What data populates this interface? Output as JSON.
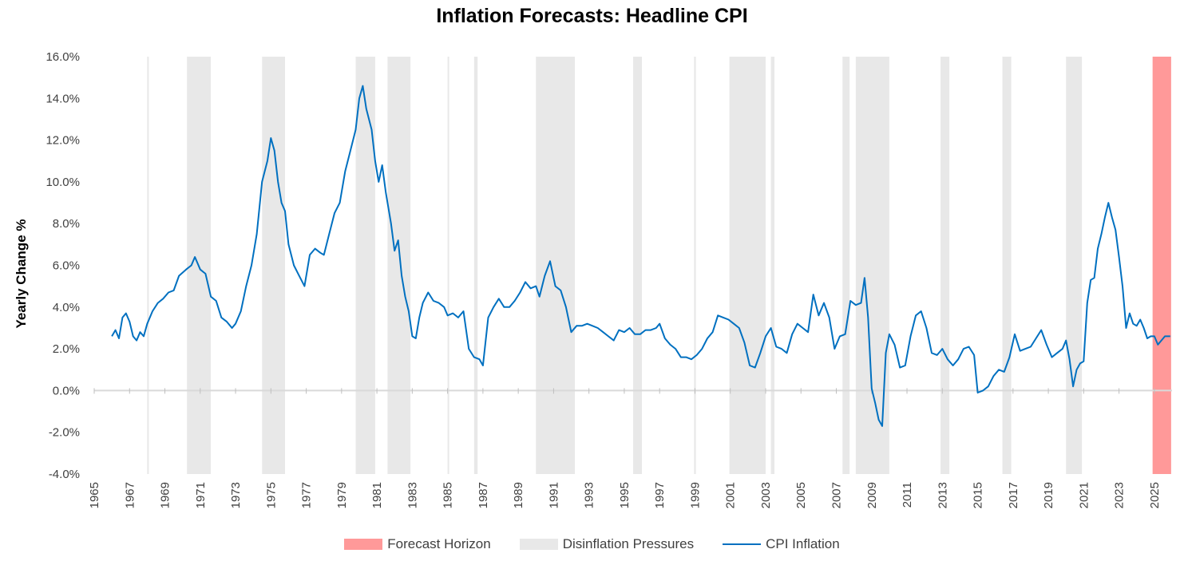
{
  "chart_data": {
    "type": "line",
    "title": "Inflation Forecasts: Headline CPI",
    "xlabel": "",
    "ylabel": "Yearly Change %",
    "xlim": [
      1965,
      2026
    ],
    "ylim": [
      -4,
      16
    ],
    "y_ticks": [
      "-4.0%",
      "-2.0%",
      "0.0%",
      "2.0%",
      "4.0%",
      "6.0%",
      "8.0%",
      "10.0%",
      "12.0%",
      "14.0%",
      "16.0%"
    ],
    "x_ticks": [
      "1965",
      "1967",
      "1969",
      "1971",
      "1973",
      "1975",
      "1977",
      "1979",
      "1981",
      "1983",
      "1985",
      "1987",
      "1989",
      "1991",
      "1993",
      "1995",
      "1997",
      "1999",
      "2001",
      "2003",
      "2005",
      "2007",
      "2009",
      "2011",
      "2013",
      "2015",
      "2017",
      "2019",
      "2021",
      "2023",
      "2025"
    ],
    "grid": false,
    "legend_position": "bottom",
    "colors": {
      "forecast": "#ff9999",
      "disinflation": "#e8e8e8",
      "line": "#0070c0"
    },
    "legend": [
      {
        "label": "Forecast Horizon",
        "color": "#ff9999",
        "kind": "rect"
      },
      {
        "label": "Disinflation Pressures",
        "color": "#e8e8e8",
        "kind": "rect"
      },
      {
        "label": "CPI Inflation",
        "color": "#0070c0",
        "kind": "line"
      }
    ],
    "forecast_horizon": [
      2024.9,
      2025.95
    ],
    "disinflation_periods": [
      [
        1968.0,
        1968.08
      ],
      [
        1970.25,
        1971.6
      ],
      [
        1974.5,
        1975.8
      ],
      [
        1979.8,
        1980.9
      ],
      [
        1981.6,
        1982.9
      ],
      [
        1985.0,
        1985.08
      ],
      [
        1986.5,
        1986.7
      ],
      [
        1990.0,
        1992.2
      ],
      [
        1995.5,
        1996.0
      ],
      [
        1998.95,
        1999.05
      ],
      [
        2000.95,
        2003.0
      ],
      [
        2003.3,
        2003.5
      ],
      [
        2007.35,
        2007.75
      ],
      [
        2008.1,
        2010.0
      ],
      [
        2012.9,
        2013.4
      ],
      [
        2016.4,
        2016.9
      ],
      [
        2020.0,
        2020.9
      ]
    ],
    "series": [
      {
        "name": "CPI Inflation",
        "points": [
          [
            1966.0,
            2.6
          ],
          [
            1966.2,
            2.9
          ],
          [
            1966.4,
            2.5
          ],
          [
            1966.6,
            3.5
          ],
          [
            1966.8,
            3.7
          ],
          [
            1967.0,
            3.3
          ],
          [
            1967.2,
            2.6
          ],
          [
            1967.4,
            2.4
          ],
          [
            1967.6,
            2.8
          ],
          [
            1967.8,
            2.6
          ],
          [
            1968.0,
            3.2
          ],
          [
            1968.3,
            3.8
          ],
          [
            1968.6,
            4.2
          ],
          [
            1968.9,
            4.4
          ],
          [
            1969.2,
            4.7
          ],
          [
            1969.5,
            4.8
          ],
          [
            1969.8,
            5.5
          ],
          [
            1970.2,
            5.8
          ],
          [
            1970.5,
            6.0
          ],
          [
            1970.7,
            6.4
          ],
          [
            1971.0,
            5.8
          ],
          [
            1971.3,
            5.6
          ],
          [
            1971.6,
            4.5
          ],
          [
            1971.9,
            4.3
          ],
          [
            1972.2,
            3.5
          ],
          [
            1972.5,
            3.3
          ],
          [
            1972.8,
            3.0
          ],
          [
            1973.0,
            3.2
          ],
          [
            1973.3,
            3.8
          ],
          [
            1973.6,
            5.0
          ],
          [
            1973.9,
            6.0
          ],
          [
            1974.2,
            7.5
          ],
          [
            1974.5,
            10.0
          ],
          [
            1974.8,
            11.0
          ],
          [
            1975.0,
            12.1
          ],
          [
            1975.2,
            11.5
          ],
          [
            1975.4,
            10.0
          ],
          [
            1975.6,
            9.0
          ],
          [
            1975.8,
            8.6
          ],
          [
            1976.0,
            7.0
          ],
          [
            1976.3,
            6.0
          ],
          [
            1976.6,
            5.5
          ],
          [
            1976.9,
            5.0
          ],
          [
            1977.2,
            6.5
          ],
          [
            1977.5,
            6.8
          ],
          [
            1977.8,
            6.6
          ],
          [
            1978.0,
            6.5
          ],
          [
            1978.3,
            7.5
          ],
          [
            1978.6,
            8.5
          ],
          [
            1978.9,
            9.0
          ],
          [
            1979.2,
            10.5
          ],
          [
            1979.5,
            11.5
          ],
          [
            1979.8,
            12.5
          ],
          [
            1980.0,
            14.0
          ],
          [
            1980.2,
            14.6
          ],
          [
            1980.4,
            13.5
          ],
          [
            1980.7,
            12.5
          ],
          [
            1980.9,
            11.0
          ],
          [
            1981.1,
            10.0
          ],
          [
            1981.3,
            10.8
          ],
          [
            1981.5,
            9.5
          ],
          [
            1981.8,
            8.0
          ],
          [
            1982.0,
            6.7
          ],
          [
            1982.2,
            7.2
          ],
          [
            1982.4,
            5.5
          ],
          [
            1982.6,
            4.5
          ],
          [
            1982.8,
            3.8
          ],
          [
            1983.0,
            2.6
          ],
          [
            1983.2,
            2.5
          ],
          [
            1983.4,
            3.5
          ],
          [
            1983.6,
            4.2
          ],
          [
            1983.9,
            4.7
          ],
          [
            1984.2,
            4.3
          ],
          [
            1984.5,
            4.2
          ],
          [
            1984.8,
            4.0
          ],
          [
            1985.0,
            3.6
          ],
          [
            1985.3,
            3.7
          ],
          [
            1985.6,
            3.5
          ],
          [
            1985.9,
            3.8
          ],
          [
            1986.2,
            2.0
          ],
          [
            1986.5,
            1.6
          ],
          [
            1986.8,
            1.5
          ],
          [
            1987.0,
            1.2
          ],
          [
            1987.3,
            3.5
          ],
          [
            1987.6,
            4.0
          ],
          [
            1987.9,
            4.4
          ],
          [
            1988.2,
            4.0
          ],
          [
            1988.5,
            4.0
          ],
          [
            1988.8,
            4.3
          ],
          [
            1989.1,
            4.7
          ],
          [
            1989.4,
            5.2
          ],
          [
            1989.7,
            4.9
          ],
          [
            1990.0,
            5.0
          ],
          [
            1990.2,
            4.5
          ],
          [
            1990.5,
            5.5
          ],
          [
            1990.8,
            6.2
          ],
          [
            1991.1,
            5.0
          ],
          [
            1991.4,
            4.8
          ],
          [
            1991.7,
            4.0
          ],
          [
            1992.0,
            2.8
          ],
          [
            1992.3,
            3.1
          ],
          [
            1992.6,
            3.1
          ],
          [
            1992.9,
            3.2
          ],
          [
            1993.2,
            3.1
          ],
          [
            1993.5,
            3.0
          ],
          [
            1993.8,
            2.8
          ],
          [
            1994.1,
            2.6
          ],
          [
            1994.4,
            2.4
          ],
          [
            1994.7,
            2.9
          ],
          [
            1995.0,
            2.8
          ],
          [
            1995.3,
            3.0
          ],
          [
            1995.6,
            2.7
          ],
          [
            1995.9,
            2.7
          ],
          [
            1996.2,
            2.9
          ],
          [
            1996.5,
            2.9
          ],
          [
            1996.8,
            3.0
          ],
          [
            1997.0,
            3.2
          ],
          [
            1997.3,
            2.5
          ],
          [
            1997.6,
            2.2
          ],
          [
            1997.9,
            2.0
          ],
          [
            1998.2,
            1.6
          ],
          [
            1998.5,
            1.6
          ],
          [
            1998.8,
            1.5
          ],
          [
            1999.1,
            1.7
          ],
          [
            1999.4,
            2.0
          ],
          [
            1999.7,
            2.5
          ],
          [
            2000.0,
            2.8
          ],
          [
            2000.3,
            3.6
          ],
          [
            2000.6,
            3.5
          ],
          [
            2000.9,
            3.4
          ],
          [
            2001.2,
            3.2
          ],
          [
            2001.5,
            3.0
          ],
          [
            2001.8,
            2.3
          ],
          [
            2002.1,
            1.2
          ],
          [
            2002.4,
            1.1
          ],
          [
            2002.7,
            1.8
          ],
          [
            2003.0,
            2.6
          ],
          [
            2003.3,
            3.0
          ],
          [
            2003.6,
            2.1
          ],
          [
            2003.9,
            2.0
          ],
          [
            2004.2,
            1.8
          ],
          [
            2004.5,
            2.7
          ],
          [
            2004.8,
            3.2
          ],
          [
            2005.1,
            3.0
          ],
          [
            2005.4,
            2.8
          ],
          [
            2005.7,
            4.6
          ],
          [
            2006.0,
            3.6
          ],
          [
            2006.3,
            4.2
          ],
          [
            2006.6,
            3.5
          ],
          [
            2006.9,
            2.0
          ],
          [
            2007.2,
            2.6
          ],
          [
            2007.5,
            2.7
          ],
          [
            2007.8,
            4.3
          ],
          [
            2008.1,
            4.1
          ],
          [
            2008.4,
            4.2
          ],
          [
            2008.6,
            5.4
          ],
          [
            2008.8,
            3.5
          ],
          [
            2009.0,
            0.1
          ],
          [
            2009.2,
            -0.6
          ],
          [
            2009.4,
            -1.4
          ],
          [
            2009.6,
            -1.7
          ],
          [
            2009.8,
            1.8
          ],
          [
            2010.0,
            2.7
          ],
          [
            2010.3,
            2.2
          ],
          [
            2010.6,
            1.1
          ],
          [
            2010.9,
            1.2
          ],
          [
            2011.2,
            2.6
          ],
          [
            2011.5,
            3.6
          ],
          [
            2011.8,
            3.8
          ],
          [
            2012.1,
            3.0
          ],
          [
            2012.4,
            1.8
          ],
          [
            2012.7,
            1.7
          ],
          [
            2013.0,
            2.0
          ],
          [
            2013.3,
            1.5
          ],
          [
            2013.6,
            1.2
          ],
          [
            2013.9,
            1.5
          ],
          [
            2014.2,
            2.0
          ],
          [
            2014.5,
            2.1
          ],
          [
            2014.8,
            1.7
          ],
          [
            2015.0,
            -0.1
          ],
          [
            2015.3,
            0.0
          ],
          [
            2015.6,
            0.2
          ],
          [
            2015.9,
            0.7
          ],
          [
            2016.2,
            1.0
          ],
          [
            2016.5,
            0.9
          ],
          [
            2016.8,
            1.6
          ],
          [
            2017.1,
            2.7
          ],
          [
            2017.4,
            1.9
          ],
          [
            2017.7,
            2.0
          ],
          [
            2018.0,
            2.1
          ],
          [
            2018.3,
            2.5
          ],
          [
            2018.6,
            2.9
          ],
          [
            2018.9,
            2.2
          ],
          [
            2019.2,
            1.6
          ],
          [
            2019.5,
            1.8
          ],
          [
            2019.8,
            2.0
          ],
          [
            2020.0,
            2.4
          ],
          [
            2020.2,
            1.5
          ],
          [
            2020.4,
            0.2
          ],
          [
            2020.6,
            1.0
          ],
          [
            2020.8,
            1.3
          ],
          [
            2021.0,
            1.4
          ],
          [
            2021.2,
            4.2
          ],
          [
            2021.4,
            5.3
          ],
          [
            2021.6,
            5.4
          ],
          [
            2021.8,
            6.8
          ],
          [
            2022.0,
            7.5
          ],
          [
            2022.2,
            8.3
          ],
          [
            2022.4,
            9.0
          ],
          [
            2022.6,
            8.3
          ],
          [
            2022.8,
            7.7
          ],
          [
            2023.0,
            6.4
          ],
          [
            2023.2,
            5.0
          ],
          [
            2023.4,
            3.0
          ],
          [
            2023.6,
            3.7
          ],
          [
            2023.8,
            3.2
          ],
          [
            2024.0,
            3.1
          ],
          [
            2024.2,
            3.4
          ],
          [
            2024.4,
            3.0
          ],
          [
            2024.6,
            2.5
          ],
          [
            2024.8,
            2.6
          ],
          [
            2025.0,
            2.6
          ],
          [
            2025.2,
            2.2
          ],
          [
            2025.4,
            2.4
          ],
          [
            2025.6,
            2.6
          ],
          [
            2025.9,
            2.6
          ]
        ]
      }
    ]
  }
}
